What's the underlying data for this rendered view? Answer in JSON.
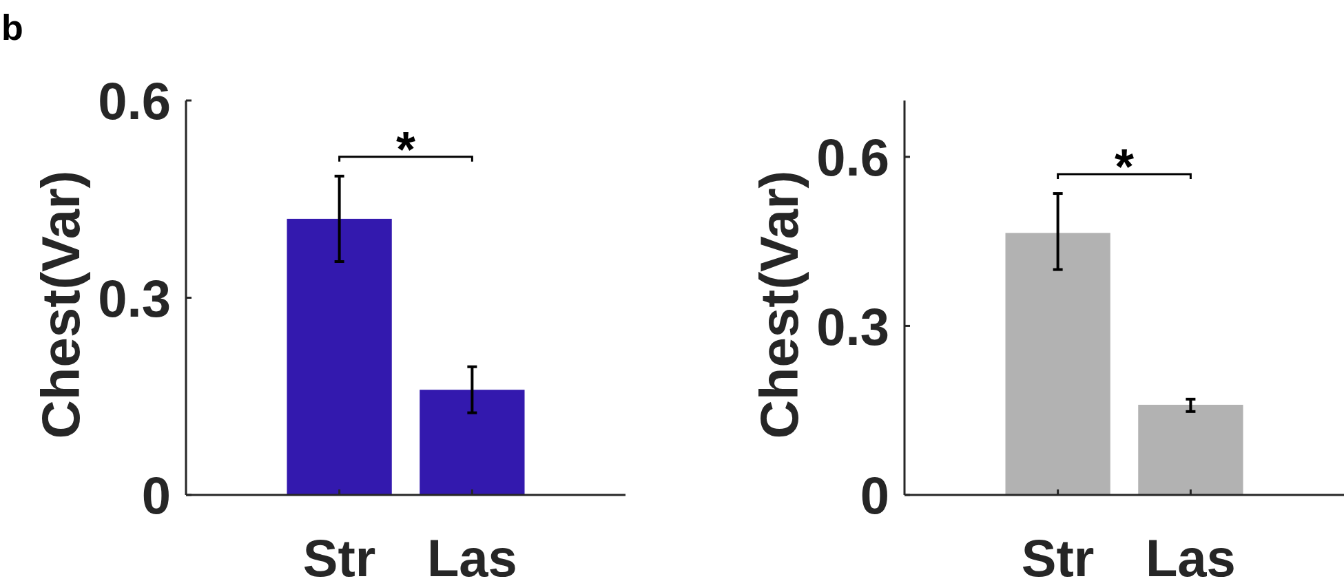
{
  "chart_data": [
    {
      "type": "bar",
      "ylabel": "Chest(Var)",
      "categories": [
        "Str",
        "Las"
      ],
      "values": [
        0.42,
        0.16
      ],
      "color": "#3319ae",
      "errors": [
        [
          0.355,
          0.485
        ],
        [
          0.125,
          0.195
        ]
      ],
      "ylim": [
        0,
        0.6
      ],
      "yticks": [
        0,
        0.3,
        0.6
      ],
      "annotations": [
        "b",
        "*"
      ]
    },
    {
      "type": "bar",
      "ylabel": "Chest(Var)",
      "categories": [
        "Str",
        "Las"
      ],
      "values": [
        0.465,
        0.16
      ],
      "color": "#b2b2b2",
      "errors": [
        [
          0.4,
          0.535
        ],
        [
          0.148,
          0.17
        ]
      ],
      "ylim": [
        0,
        0.7
      ],
      "yticks": [
        0,
        0.3,
        0.6
      ],
      "annotations": [
        "*"
      ]
    }
  ]
}
